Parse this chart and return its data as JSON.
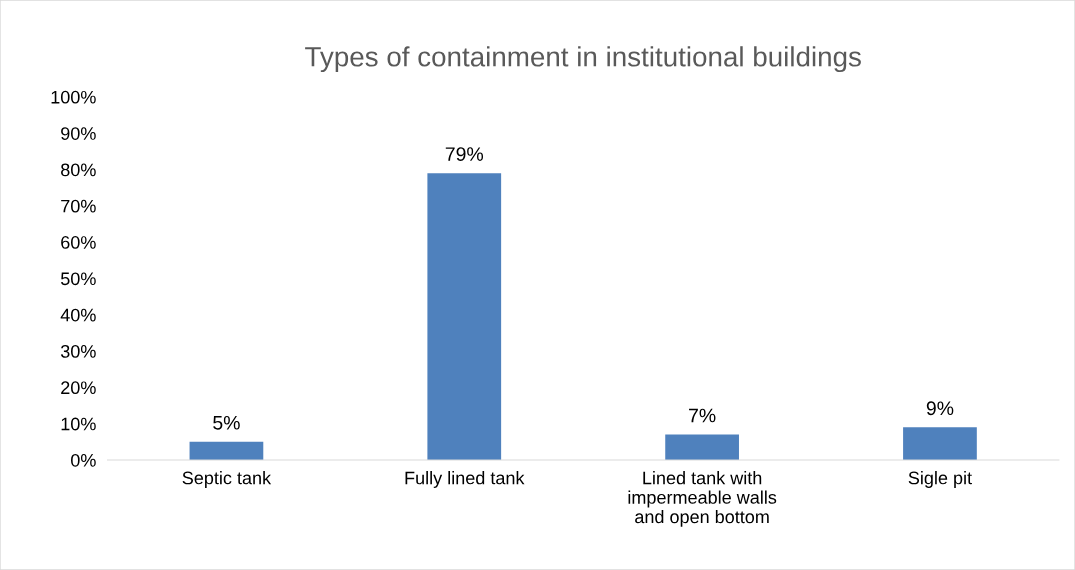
{
  "chart_data": {
    "type": "bar",
    "title": "Types of containment in institutional buildings",
    "categories": [
      "Septic tank",
      "Fully lined tank",
      "Lined tank with\nimpermeable walls\nand open bottom",
      "Sigle pit"
    ],
    "values": [
      5,
      79,
      7,
      9
    ],
    "value_labels": [
      "5%",
      "79%",
      "7%",
      "9%"
    ],
    "color": "#4f81bd",
    "ylim": [
      0,
      100
    ],
    "yticks": [
      {
        "value": 0,
        "label": "0%"
      },
      {
        "value": 10,
        "label": "10%"
      },
      {
        "value": 20,
        "label": "20%"
      },
      {
        "value": 30,
        "label": "30%"
      },
      {
        "value": 40,
        "label": "40%"
      },
      {
        "value": 50,
        "label": "50%"
      },
      {
        "value": 60,
        "label": "60%"
      },
      {
        "value": 70,
        "label": "70%"
      },
      {
        "value": 80,
        "label": "80%"
      },
      {
        "value": 90,
        "label": "90%"
      },
      {
        "value": 100,
        "label": "100%"
      }
    ],
    "grid": false,
    "legend": false
  }
}
